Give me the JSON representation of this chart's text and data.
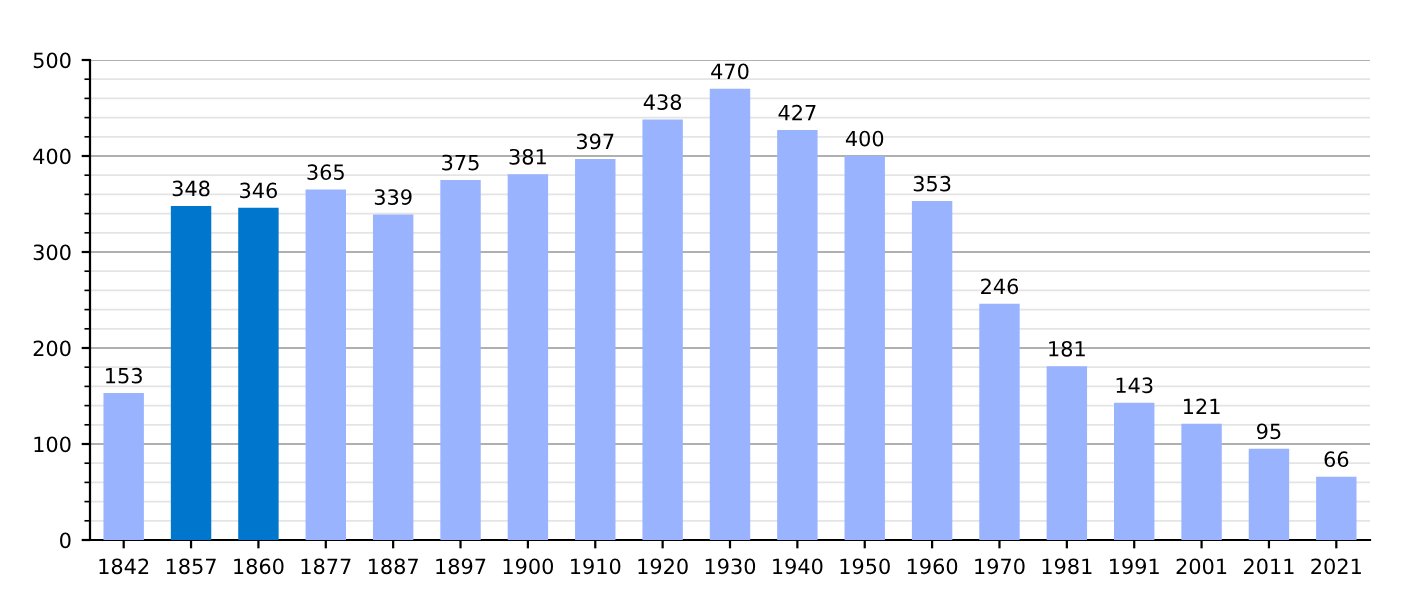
{
  "chart_data": {
    "type": "bar",
    "categories": [
      "1842",
      "1857",
      "1860",
      "1877",
      "1887",
      "1897",
      "1900",
      "1910",
      "1920",
      "1930",
      "1940",
      "1950",
      "1960",
      "1970",
      "1981",
      "1991",
      "2001",
      "2011",
      "2021"
    ],
    "values": [
      153,
      348,
      346,
      365,
      339,
      375,
      381,
      397,
      438,
      470,
      427,
      400,
      353,
      246,
      181,
      143,
      121,
      95,
      66
    ],
    "colors": [
      "#99b3ff",
      "#0077cc",
      "#0077cc",
      "#99b3ff",
      "#99b3ff",
      "#99b3ff",
      "#99b3ff",
      "#99b3ff",
      "#99b3ff",
      "#99b3ff",
      "#99b3ff",
      "#99b3ff",
      "#99b3ff",
      "#99b3ff",
      "#99b3ff",
      "#99b3ff",
      "#99b3ff",
      "#99b3ff",
      "#99b3ff"
    ],
    "ylim": [
      0,
      500
    ],
    "yticks": [
      0,
      100,
      200,
      300,
      400,
      500
    ],
    "grid": "y",
    "data_labels": true
  }
}
